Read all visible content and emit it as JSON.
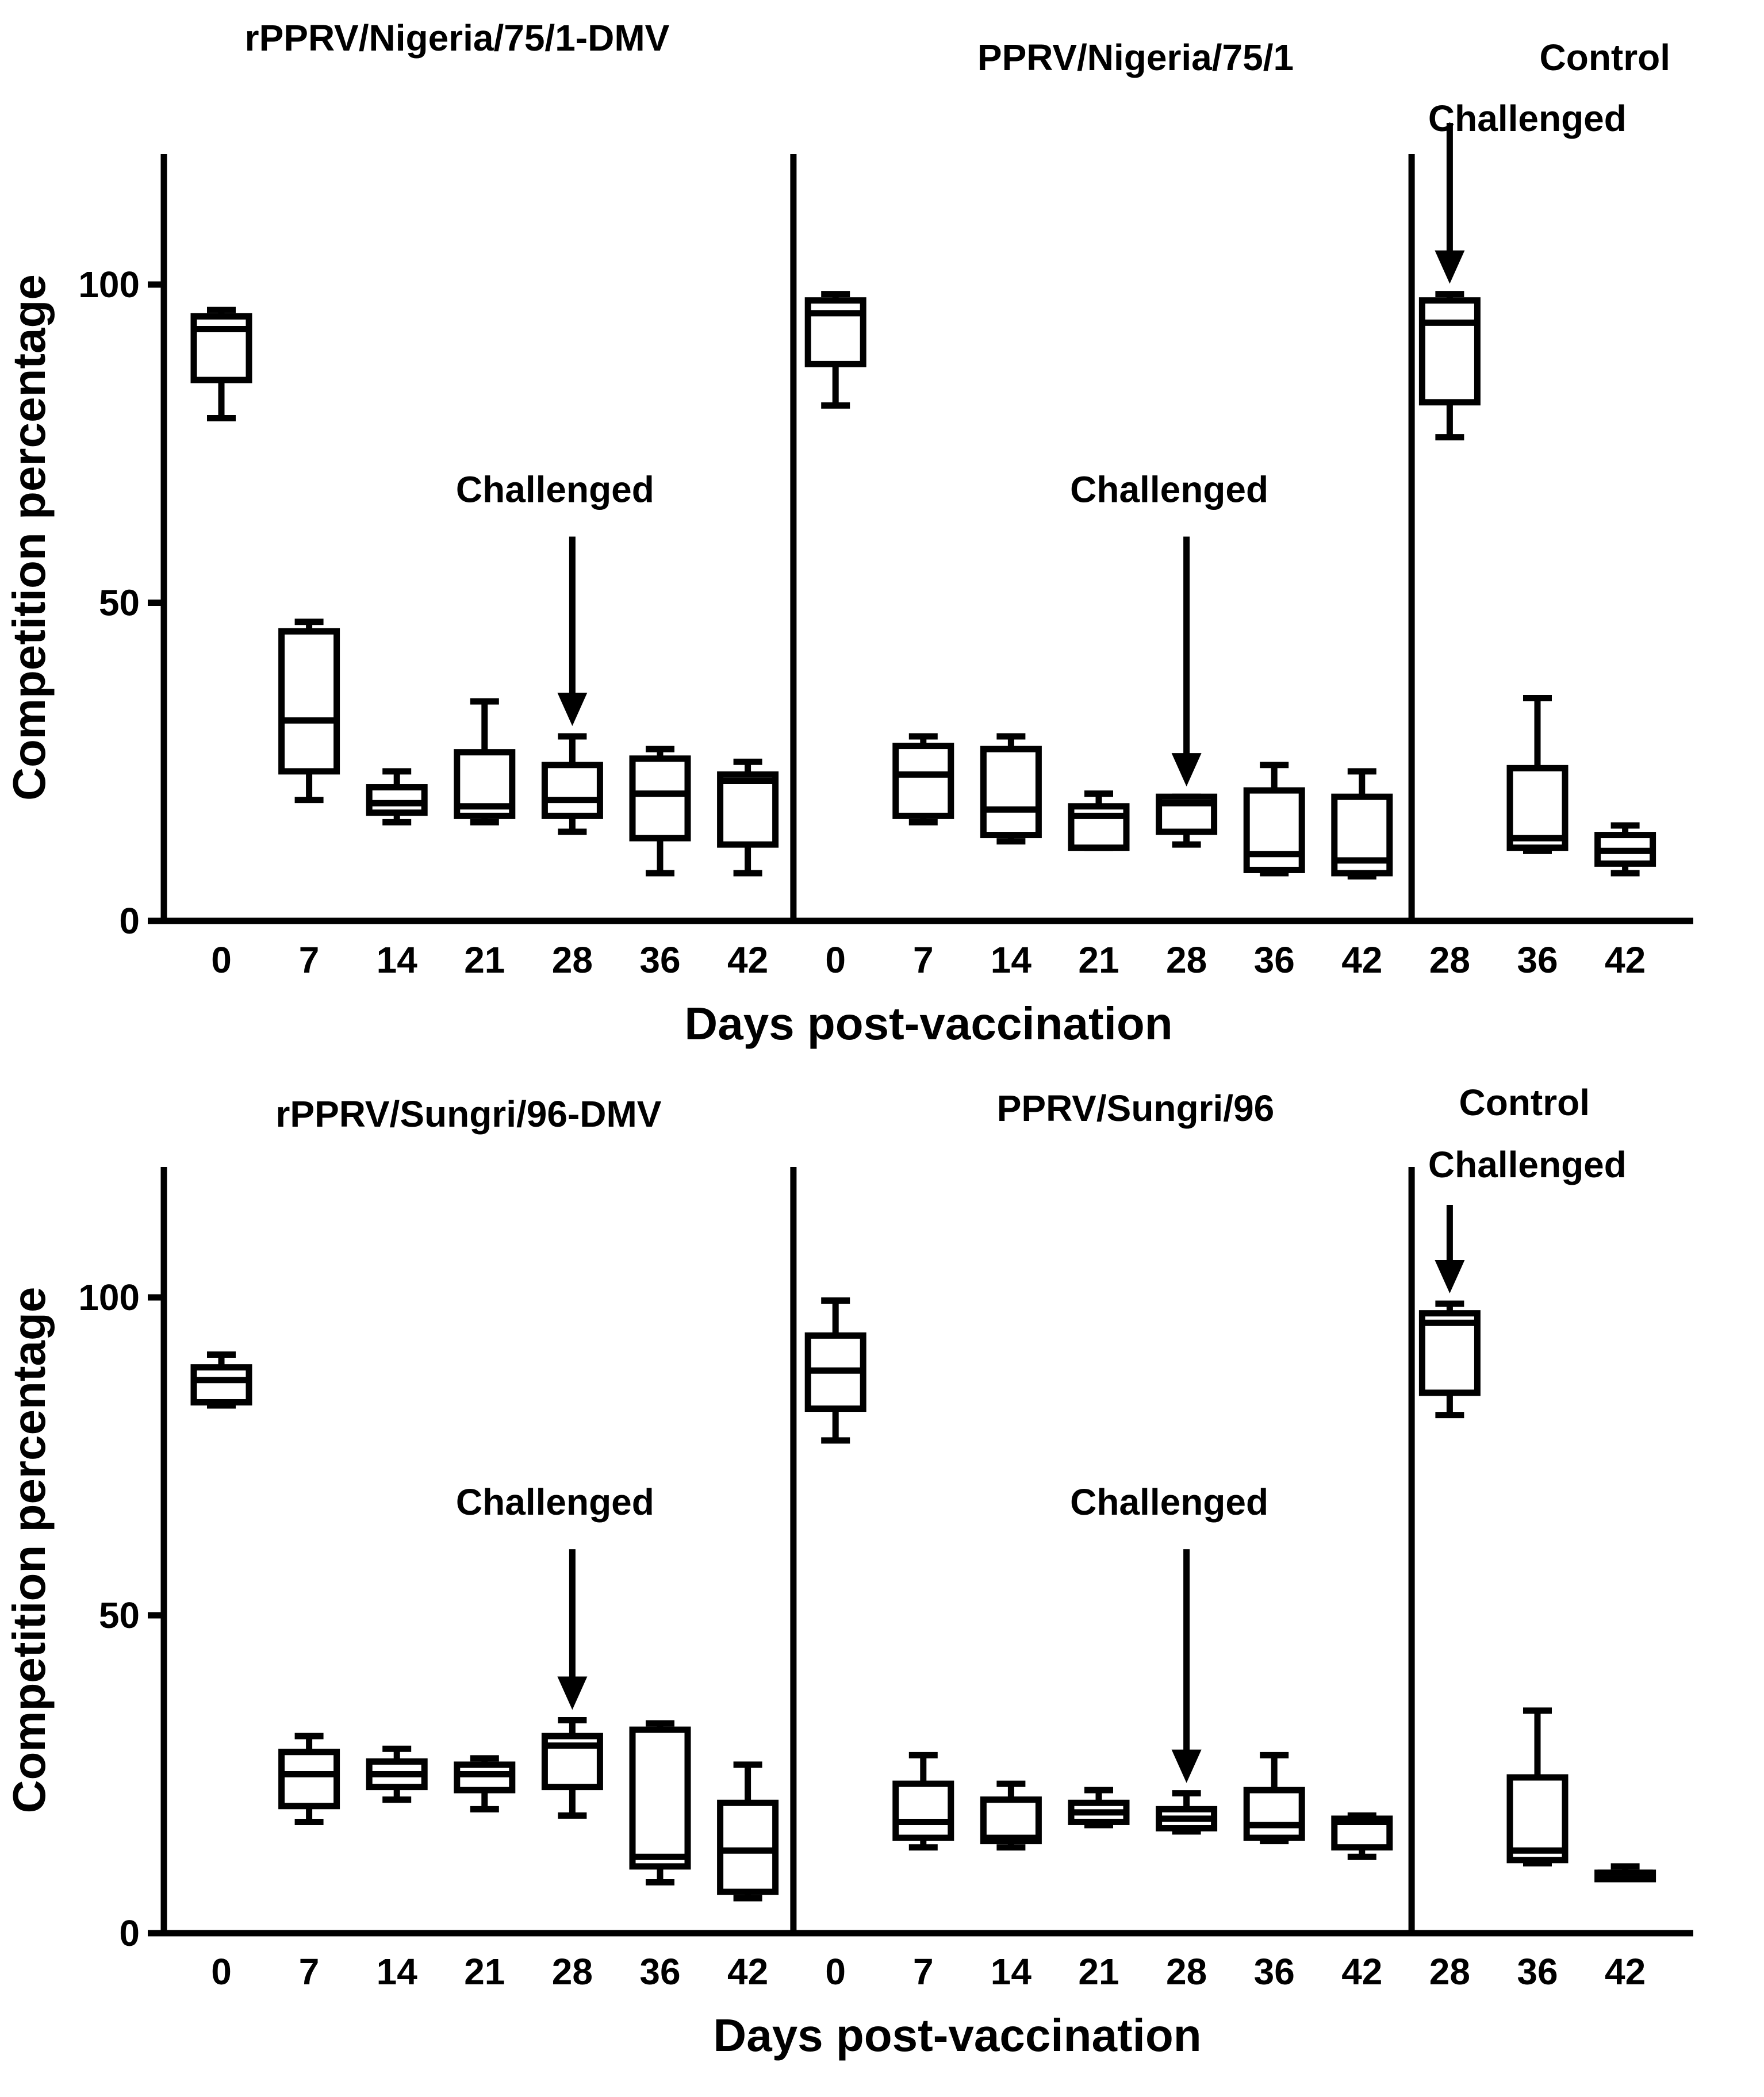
{
  "chart_data": [
    {
      "type": "box",
      "panel": "top",
      "ylabel": "Competition percentage",
      "xlabel": "Days post-vaccination",
      "ylim": [
        0,
        120
      ],
      "yticks": [
        0,
        50,
        100
      ],
      "annotation_text": "Challenged",
      "groups": [
        {
          "title": "rPPRV/Nigeria/75/1-DMV",
          "challenged_at": "28",
          "boxes": [
            {
              "day": "0",
              "min": 79,
              "q1": 85,
              "median": 93,
              "q3": 95,
              "max": 96
            },
            {
              "day": "7",
              "min": 19,
              "q1": 23.5,
              "median": 31.5,
              "q3": 45.5,
              "max": 47
            },
            {
              "day": "14",
              "min": 15.5,
              "q1": 17,
              "median": 18.5,
              "q3": 21,
              "max": 23.5
            },
            {
              "day": "21",
              "min": 15.5,
              "q1": 16.5,
              "median": 18,
              "q3": 26.5,
              "max": 34.5
            },
            {
              "day": "28",
              "min": 14,
              "q1": 16.5,
              "median": 19,
              "q3": 24.5,
              "max": 29
            },
            {
              "day": "36",
              "min": 7.5,
              "q1": 13,
              "median": 20,
              "q3": 25.5,
              "max": 27
            },
            {
              "day": "42",
              "min": 7.5,
              "q1": 12,
              "median": 22,
              "q3": 23,
              "max": 25
            }
          ]
        },
        {
          "title": "PPRV/Nigeria/75/1",
          "challenged_at": "28",
          "boxes": [
            {
              "day": "0",
              "min": 81,
              "q1": 87.5,
              "median": 95.5,
              "q3": 97.5,
              "max": 98.5
            },
            {
              "day": "7",
              "min": 15.5,
              "q1": 16.5,
              "median": 23,
              "q3": 27.5,
              "max": 29
            },
            {
              "day": "14",
              "min": 12.5,
              "q1": 13.5,
              "median": 17.5,
              "q3": 27,
              "max": 29
            },
            {
              "day": "21",
              "min": 11.5,
              "q1": 11.5,
              "median": 16.5,
              "q3": 18,
              "max": 20
            },
            {
              "day": "28",
              "min": 12,
              "q1": 14,
              "median": 18.5,
              "q3": 19.5,
              "max": 19.5
            },
            {
              "day": "36",
              "min": 7.5,
              "q1": 8,
              "median": 10.5,
              "q3": 20.5,
              "max": 24.5
            },
            {
              "day": "42",
              "min": 7,
              "q1": 7.5,
              "median": 9.5,
              "q3": 19.5,
              "max": 23.5
            }
          ]
        },
        {
          "title": "Control",
          "challenged_at": "28",
          "boxes": [
            {
              "day": "28",
              "min": 76,
              "q1": 81.5,
              "median": 94,
              "q3": 97.5,
              "max": 98.5
            },
            {
              "day": "36",
              "min": 11,
              "q1": 11.5,
              "median": 13,
              "q3": 24,
              "max": 35
            },
            {
              "day": "42",
              "min": 7.5,
              "q1": 9,
              "median": 11,
              "q3": 13.5,
              "max": 15
            }
          ]
        }
      ]
    },
    {
      "type": "box",
      "panel": "bottom",
      "ylabel": "Competition percentage",
      "xlabel": "Days post-vaccination",
      "ylim": [
        0,
        120
      ],
      "yticks": [
        0,
        50,
        100
      ],
      "annotation_text": "Challenged",
      "groups": [
        {
          "title": "rPPRV/Sungri/96-DMV",
          "challenged_at": "28",
          "boxes": [
            {
              "day": "0",
              "min": 83,
              "q1": 83.5,
              "median": 87,
              "q3": 89,
              "max": 91
            },
            {
              "day": "7",
              "min": 17.5,
              "q1": 20,
              "median": 25,
              "q3": 28.5,
              "max": 31
            },
            {
              "day": "14",
              "min": 21,
              "q1": 23,
              "median": 25,
              "q3": 27,
              "max": 29
            },
            {
              "day": "21",
              "min": 19.5,
              "q1": 22.5,
              "median": 25,
              "q3": 26.5,
              "max": 27.5
            },
            {
              "day": "28",
              "min": 18.5,
              "q1": 23,
              "median": 29.5,
              "q3": 31,
              "max": 33.5
            },
            {
              "day": "36",
              "min": 8,
              "q1": 10.5,
              "median": 12,
              "q3": 32,
              "max": 33
            },
            {
              "day": "42",
              "min": 5.5,
              "q1": 6.5,
              "median": 13,
              "q3": 20.5,
              "max": 26.5
            }
          ]
        },
        {
          "title": "PPRV/Sungri/96",
          "challenged_at": "28",
          "boxes": [
            {
              "day": "0",
              "min": 77.5,
              "q1": 82.5,
              "median": 88.5,
              "q3": 94,
              "max": 99.5
            },
            {
              "day": "7",
              "min": 13.5,
              "q1": 15,
              "median": 17.5,
              "q3": 23.5,
              "max": 28
            },
            {
              "day": "14",
              "min": 13.5,
              "q1": 14.5,
              "median": 15,
              "q3": 21,
              "max": 23.5
            },
            {
              "day": "21",
              "min": 17,
              "q1": 17.5,
              "median": 19,
              "q3": 20.5,
              "max": 22.5
            },
            {
              "day": "28",
              "min": 16,
              "q1": 16.5,
              "median": 18,
              "q3": 19.5,
              "max": 22
            },
            {
              "day": "36",
              "min": 14.5,
              "q1": 15,
              "median": 17,
              "q3": 22.5,
              "max": 28
            },
            {
              "day": "42",
              "min": 12,
              "q1": 13.5,
              "median": 17.5,
              "q3": 18,
              "max": 18.5
            }
          ]
        },
        {
          "title": "Control",
          "challenged_at": "28",
          "boxes": [
            {
              "day": "28",
              "min": 81.5,
              "q1": 85,
              "median": 96,
              "q3": 97.5,
              "max": 99
            },
            {
              "day": "36",
              "min": 11,
              "q1": 11.5,
              "median": 13,
              "q3": 24.5,
              "max": 35
            },
            {
              "day": "42",
              "min": 8.5,
              "q1": 8.5,
              "median": 9.5,
              "q3": 9.5,
              "max": 10.5
            }
          ]
        }
      ]
    }
  ]
}
